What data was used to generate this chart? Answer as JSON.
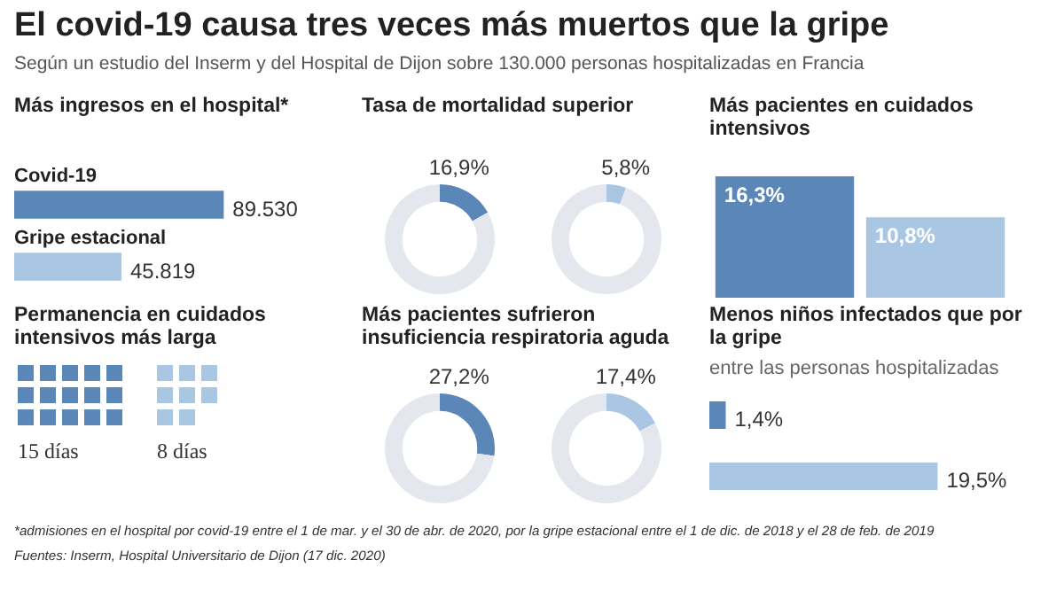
{
  "chart_data": [
    {
      "type": "other",
      "title": "El covid-19 causa tres veces más muertos que la gripe",
      "subtitle": "Según un estudio del Inserm y del Hospital de Dijon sobre 130.000 personas hospitalizadas en Francia",
      "annotations": [
        "*admisiones en el hospital por covid-19 entre el 1 de mar. y el 30 de abr. de 2020, por la gripe estacional entre el 1 de dic. de 2018 y el 28 de feb. de 2019",
        "Fuentes: Inserm, Hospital Universitario de Dijon (17 dic. 2020)"
      ]
    },
    {
      "type": "bar",
      "orientation": "horizontal",
      "title": "Más ingresos en el hospital*",
      "categories": [
        "Covid-19",
        "Gripe estacional"
      ],
      "values": [
        89530,
        45819
      ],
      "colors": [
        "#5b87b8",
        "#a9c6e3"
      ],
      "value_labels": [
        "89.530",
        "45.819"
      ]
    },
    {
      "type": "donut",
      "title": "Tasa de mortalidad superior",
      "categories": [
        null,
        null
      ],
      "values": [
        16.9,
        83.1
      ],
      "colors": [
        "#5b87b8",
        "#e4e8ee"
      ],
      "value_labels": [
        "16,9%",
        null
      ]
    },
    {
      "type": "donut",
      "categories": [
        null,
        null
      ],
      "values": [
        5.8,
        94.2
      ],
      "colors": [
        "#a9c6e3",
        "#e4e8ee"
      ],
      "value_labels": [
        "5,8%",
        null
      ]
    },
    {
      "type": "bar",
      "title": "Más pacientes en cuidados intensivos",
      "categories": [
        null,
        null
      ],
      "values": [
        16.3,
        10.8
      ],
      "colors": [
        "#5b87b8",
        "#a9c6e3"
      ],
      "value_labels": [
        "16,3%",
        "10,8%"
      ]
    },
    {
      "type": "other",
      "title": "Permanencia en cuidados intensivos más larga",
      "categories": [
        null,
        null
      ],
      "values": [
        15,
        8
      ],
      "colors": [
        "#5b87b8",
        "#a9c6e3"
      ],
      "value_labels": [
        "15 días",
        "8 días"
      ]
    },
    {
      "type": "donut",
      "title": "Más pacientes sufrieron insuficiencia respiratoria aguda",
      "categories": [
        null,
        null
      ],
      "values": [
        27.2,
        72.8
      ],
      "colors": [
        "#5b87b8",
        "#e4e8ee"
      ],
      "value_labels": [
        "27,2%",
        null
      ]
    },
    {
      "type": "donut",
      "categories": [
        null,
        null
      ],
      "values": [
        17.4,
        82.6
      ],
      "colors": [
        "#a9c6e3",
        "#e4e8ee"
      ],
      "value_labels": [
        "17,4%",
        null
      ]
    },
    {
      "type": "bar",
      "orientation": "horizontal",
      "title": "Menos niños infectados que por la gripe",
      "subtitle": "entre las personas hospitalizadas",
      "categories": [
        null,
        null
      ],
      "values": [
        1.4,
        19.5
      ],
      "colors": [
        "#5b87b8",
        "#a9c6e3"
      ],
      "value_labels": [
        "1,4%",
        "19,5%"
      ]
    }
  ]
}
